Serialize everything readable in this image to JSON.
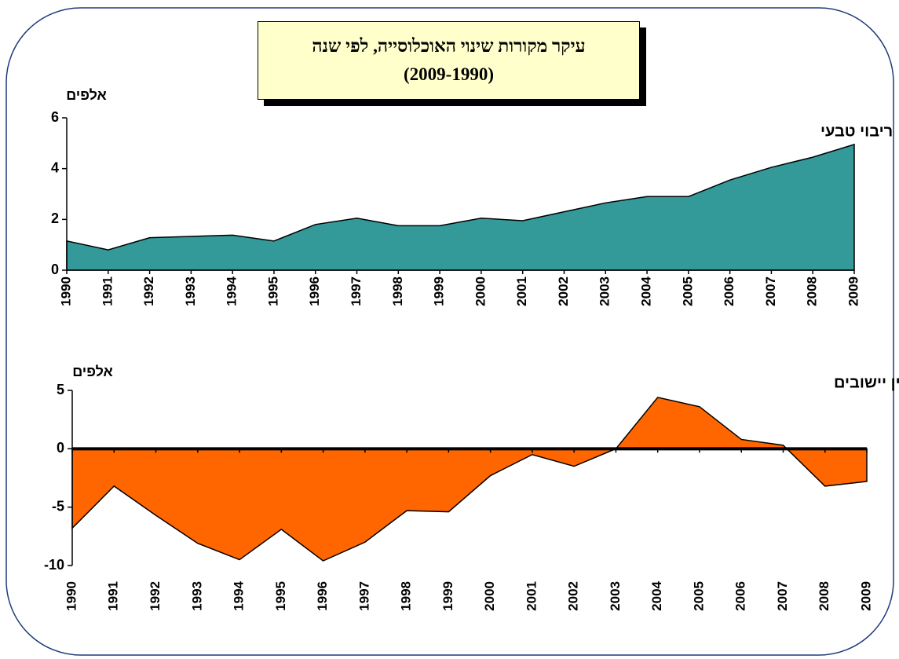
{
  "title": [
    "עיקר מקורות שינוי האוכלוסייה, לפי שנה",
    "(2009-1990)"
  ],
  "chart_data": [
    {
      "type": "area",
      "y_label": "אלפים",
      "categories": [
        1990,
        1991,
        1992,
        1993,
        1994,
        1995,
        1996,
        1997,
        1998,
        1999,
        2000,
        2001,
        2002,
        2003,
        2004,
        2005,
        2006,
        2007,
        2008,
        2009
      ],
      "series": [
        {
          "name": "ריבוי טבעי",
          "color": "#339999",
          "values": [
            1.15,
            0.8,
            1.28,
            1.33,
            1.38,
            1.15,
            1.8,
            2.05,
            1.75,
            1.75,
            2.05,
            1.95,
            2.3,
            2.65,
            2.9,
            2.9,
            3.55,
            4.05,
            4.45,
            4.95
          ]
        }
      ],
      "ylim": [
        0,
        6
      ],
      "yticks": [
        0,
        2,
        4,
        6
      ]
    },
    {
      "type": "area",
      "y_label": "אלפים",
      "categories": [
        1990,
        1991,
        1992,
        1993,
        1994,
        1995,
        1996,
        1997,
        1998,
        1999,
        2000,
        2001,
        2002,
        2003,
        2004,
        2005,
        2006,
        2007,
        2008,
        2009
      ],
      "series": [
        {
          "name": "מאזן הגירה פנימית בין יישובים",
          "color": "#ff6600",
          "values": [
            -6.8,
            -3.2,
            -5.7,
            -8.1,
            -9.5,
            -6.9,
            -9.6,
            -8,
            -5.3,
            -5.4,
            -2.3,
            -0.5,
            -1.5,
            0,
            4.4,
            3.6,
            0.8,
            0.3,
            -3.2,
            -2.8
          ]
        }
      ],
      "ylim": [
        -10,
        5
      ],
      "yticks": [
        -10,
        -5,
        0,
        5
      ]
    }
  ]
}
